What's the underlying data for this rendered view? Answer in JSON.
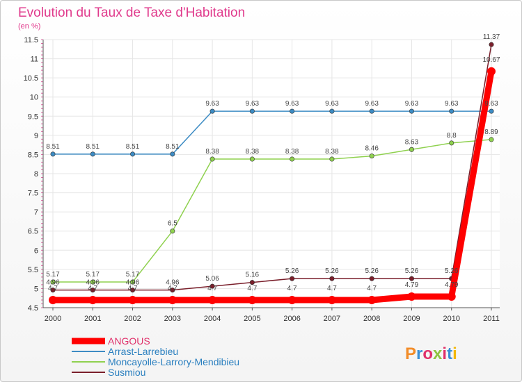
{
  "chart_data": {
    "type": "line",
    "title": "Evolution du Taux de Taxe d'Habitation",
    "subtitle": "(en %)",
    "x": [
      "2000",
      "2001",
      "2002",
      "2003",
      "2004",
      "2005",
      "2006",
      "2007",
      "2008",
      "2009",
      "2010",
      "2011"
    ],
    "ylim": [
      4.5,
      11.5
    ],
    "yticks": [
      "4.5",
      "5",
      "5.5",
      "6",
      "6.5",
      "7",
      "7.5",
      "8",
      "8.5",
      "9",
      "9.5",
      "10",
      "10.5",
      "11",
      "11.5"
    ],
    "grid": true,
    "legend_position": "bottom-left",
    "series": [
      {
        "name": "ANGOUS",
        "color": "#ff0000",
        "values": [
          4.7,
          4.7,
          4.7,
          4.7,
          4.7,
          4.7,
          4.7,
          4.7,
          4.7,
          4.79,
          4.79,
          10.67
        ],
        "labels": [
          "4.7",
          "4.7",
          "4.7",
          "4.7",
          "4.7",
          "4.7",
          "4.7",
          "4.7",
          "4.7",
          "4.79",
          "4.79",
          "10.67"
        ]
      },
      {
        "name": "Arrast-Larrebieu",
        "color": "#3d8cc4",
        "values": [
          8.51,
          8.51,
          8.51,
          8.51,
          9.63,
          9.63,
          9.63,
          9.63,
          9.63,
          9.63,
          9.63,
          9.63
        ],
        "labels": [
          "8.51",
          "8.51",
          "8.51",
          "8.51",
          "9.63",
          "9.63",
          "9.63",
          "9.63",
          "9.63",
          "9.63",
          "9.63",
          "9.63"
        ]
      },
      {
        "name": "Moncayolle-Larrory-Mendibieu",
        "color": "#8fd14f",
        "values": [
          5.17,
          5.17,
          5.17,
          6.5,
          8.38,
          8.38,
          8.38,
          8.38,
          8.46,
          8.63,
          8.8,
          8.89
        ],
        "labels": [
          "5.17",
          "5.17",
          "5.17",
          "6.5",
          "8.38",
          "8.38",
          "8.38",
          "8.38",
          "8.46",
          "8.63",
          "8.8",
          "8.89"
        ]
      },
      {
        "name": "Susmiou",
        "color": "#7a1f2b",
        "values": [
          4.96,
          4.96,
          4.96,
          4.96,
          5.06,
          5.16,
          5.26,
          5.26,
          5.26,
          5.26,
          5.26,
          11.37
        ],
        "labels": [
          "4.96",
          "4.96",
          "4.96",
          "4.96",
          "5.06",
          "5.16",
          "5.26",
          "5.26",
          "5.26",
          "5.26",
          "5.26",
          "11.37"
        ]
      }
    ]
  },
  "logo": {
    "text": "Proxiti"
  }
}
